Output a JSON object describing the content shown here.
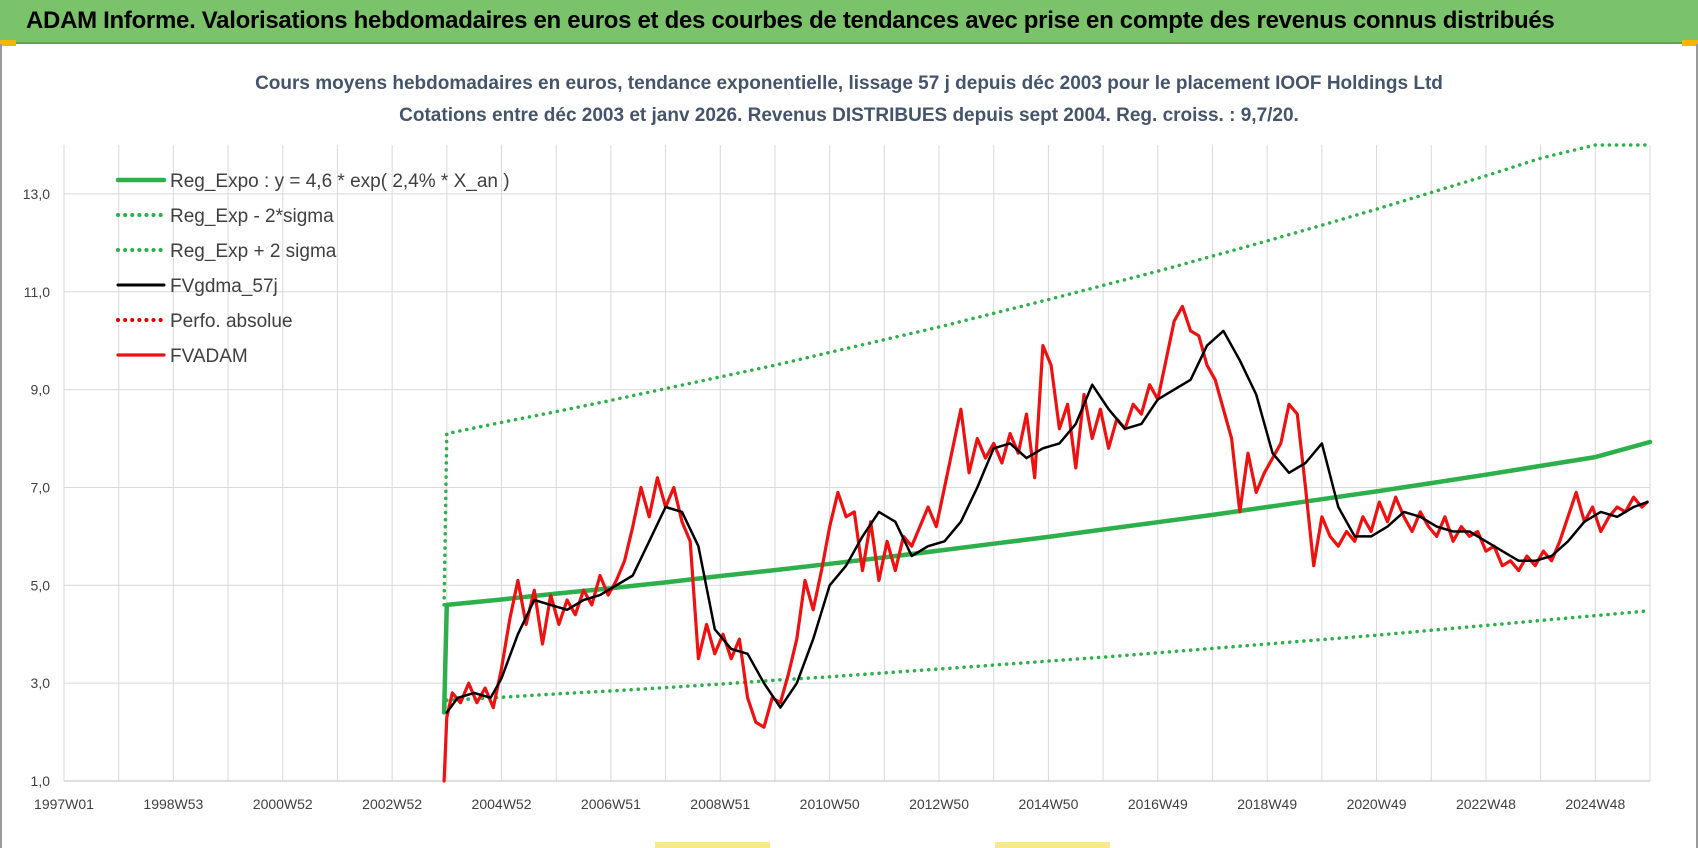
{
  "header": {
    "title": "ADAM Informe. Valorisations hebdomadaires en euros et des courbes de tendances avec prise en compte des revenus connus distribués"
  },
  "colors": {
    "header_bg": "#7ac36a",
    "trend": "#2db04b",
    "band": "#2db04b",
    "smooth": "#000000",
    "perf": "#e00000",
    "fvadam": "#ee1111",
    "grid": "#d9d9d9"
  },
  "chart_data": {
    "type": "line",
    "title": "Cours moyens hebdomadaires en euros, tendance exponentielle, lissage 57 j depuis déc 2003 pour le placement IOOF Holdings Ltd",
    "subtitle": "Cotations entre déc 2003 et janv 2026.  Revenus DISTRIBUES depuis sept 2004.  Reg. croiss. : 9,7/20.",
    "xlabel": "",
    "ylabel": "",
    "ylim": [
      1.0,
      14.0
    ],
    "xlim": [
      1997.0,
      2026.0
    ],
    "yticks": [
      "1,0",
      "3,0",
      "5,0",
      "7,0",
      "9,0",
      "11,0",
      "13,0"
    ],
    "ytick_values": [
      1,
      3,
      5,
      7,
      9,
      11,
      13
    ],
    "xticks": [
      "1997W01",
      "1998W53",
      "2000W52",
      "2002W52",
      "2004W52",
      "2006W51",
      "2008W51",
      "2010W50",
      "2012W50",
      "2014W50",
      "2016W49",
      "2018W49",
      "2020W49",
      "2022W48",
      "2024W48"
    ],
    "xtick_values": [
      1997,
      1999,
      2001,
      2003,
      2005,
      2007,
      2009,
      2011,
      2013,
      2015,
      2017,
      2019,
      2021,
      2023,
      2025
    ],
    "grid": true,
    "legend_position": "top-left",
    "series": [
      {
        "name": "Reg_Expo : y = 4,6 * exp( 2,4% *  X_an )",
        "style": "solid-thick",
        "color": "#2db04b",
        "x": [
          2003.95,
          2004.0,
          2005.0,
          2006.0,
          2007.0,
          2008.0,
          2009.0,
          2010.0,
          2011.0,
          2012.0,
          2013.0,
          2014.0,
          2015.0,
          2016.0,
          2017.0,
          2018.0,
          2019.0,
          2020.0,
          2021.0,
          2022.0,
          2023.0,
          2024.0,
          2025.0,
          2026.0
        ],
        "values": [
          2.4,
          4.6,
          4.71,
          4.83,
          4.94,
          5.06,
          5.19,
          5.31,
          5.44,
          5.57,
          5.71,
          5.85,
          5.99,
          6.14,
          6.29,
          6.44,
          6.6,
          6.76,
          6.92,
          7.09,
          7.26,
          7.44,
          7.62,
          7.93
        ]
      },
      {
        "name": "Reg_Exp - 2*sigma",
        "style": "dotted",
        "color": "#2db04b",
        "x": [
          2004.0,
          2005.0,
          2006.0,
          2007.0,
          2008.0,
          2009.0,
          2010.0,
          2011.0,
          2012.0,
          2013.0,
          2014.0,
          2015.0,
          2016.0,
          2017.0,
          2018.0,
          2019.0,
          2020.0,
          2021.0,
          2022.0,
          2023.0,
          2024.0,
          2025.0,
          2026.0
        ],
        "values": [
          2.65,
          2.71,
          2.78,
          2.84,
          2.91,
          2.98,
          3.06,
          3.13,
          3.21,
          3.29,
          3.37,
          3.45,
          3.53,
          3.62,
          3.71,
          3.8,
          3.89,
          3.98,
          4.08,
          4.18,
          4.28,
          4.38,
          4.48
        ]
      },
      {
        "name": "Reg_Exp + 2 sigma",
        "style": "dotted",
        "color": "#2db04b",
        "x": [
          2003.95,
          2004.0,
          2005.0,
          2006.0,
          2007.0,
          2008.0,
          2009.0,
          2010.0,
          2011.0,
          2012.0,
          2013.0,
          2014.0,
          2015.0,
          2016.0,
          2017.0,
          2018.0,
          2019.0,
          2020.0,
          2021.0,
          2022.0,
          2023.0,
          2024.0,
          2025.0,
          2026.0
        ],
        "values": [
          4.6,
          8.1,
          8.33,
          8.55,
          8.78,
          9.02,
          9.26,
          9.5,
          9.76,
          10.02,
          10.28,
          10.56,
          10.84,
          11.13,
          11.42,
          11.73,
          12.04,
          12.36,
          12.69,
          13.03,
          13.37,
          13.73,
          14.0,
          14.0
        ]
      },
      {
        "name": "FVgdma_57j",
        "style": "solid",
        "color": "#000000",
        "x": [
          2004.0,
          2004.2,
          2004.5,
          2004.8,
          2005.0,
          2005.3,
          2005.6,
          2005.9,
          2006.2,
          2006.5,
          2006.8,
          2007.1,
          2007.4,
          2007.7,
          2008.0,
          2008.3,
          2008.6,
          2008.9,
          2009.2,
          2009.5,
          2009.8,
          2010.1,
          2010.4,
          2010.7,
          2011.0,
          2011.3,
          2011.6,
          2011.9,
          2012.2,
          2012.5,
          2012.8,
          2013.1,
          2013.4,
          2013.7,
          2014.0,
          2014.3,
          2014.6,
          2014.9,
          2015.2,
          2015.5,
          2015.8,
          2016.1,
          2016.4,
          2016.7,
          2017.0,
          2017.3,
          2017.6,
          2017.9,
          2018.2,
          2018.5,
          2018.8,
          2019.1,
          2019.4,
          2019.7,
          2020.0,
          2020.3,
          2020.6,
          2020.9,
          2021.2,
          2021.5,
          2021.8,
          2022.1,
          2022.4,
          2022.7,
          2023.0,
          2023.3,
          2023.6,
          2023.9,
          2024.2,
          2024.5,
          2024.8,
          2025.1,
          2025.4,
          2025.7,
          2025.95
        ],
        "values": [
          2.4,
          2.7,
          2.8,
          2.7,
          3.1,
          4.0,
          4.7,
          4.6,
          4.5,
          4.7,
          4.8,
          5.0,
          5.2,
          5.9,
          6.6,
          6.5,
          5.8,
          4.1,
          3.7,
          3.6,
          3.0,
          2.5,
          3.0,
          3.9,
          5.0,
          5.4,
          6.0,
          6.5,
          6.3,
          5.6,
          5.8,
          5.9,
          6.3,
          7.0,
          7.8,
          7.9,
          7.6,
          7.8,
          7.9,
          8.3,
          9.1,
          8.6,
          8.2,
          8.3,
          8.8,
          9.0,
          9.2,
          9.9,
          10.2,
          9.6,
          8.9,
          7.7,
          7.3,
          7.5,
          7.9,
          6.6,
          6.0,
          6.0,
          6.2,
          6.5,
          6.4,
          6.2,
          6.1,
          6.1,
          5.9,
          5.7,
          5.5,
          5.5,
          5.6,
          5.9,
          6.3,
          6.5,
          6.4,
          6.6,
          6.7
        ]
      },
      {
        "name": "Perfo. absolue",
        "style": "dotted",
        "color": "#e00000",
        "x": [],
        "values": []
      },
      {
        "name": "FVADAM",
        "style": "solid-thick",
        "color": "#ee1111",
        "x": [
          2003.95,
          2004.0,
          2004.1,
          2004.25,
          2004.4,
          2004.55,
          2004.7,
          2004.85,
          2005.0,
          2005.15,
          2005.3,
          2005.45,
          2005.6,
          2005.75,
          2005.9,
          2006.05,
          2006.2,
          2006.35,
          2006.5,
          2006.65,
          2006.8,
          2006.95,
          2007.1,
          2007.25,
          2007.4,
          2007.55,
          2007.7,
          2007.85,
          2008.0,
          2008.15,
          2008.3,
          2008.45,
          2008.6,
          2008.75,
          2008.9,
          2009.05,
          2009.2,
          2009.35,
          2009.5,
          2009.65,
          2009.8,
          2009.95,
          2010.1,
          2010.25,
          2010.4,
          2010.55,
          2010.7,
          2010.85,
          2011.0,
          2011.15,
          2011.3,
          2011.45,
          2011.6,
          2011.75,
          2011.9,
          2012.05,
          2012.2,
          2012.35,
          2012.5,
          2012.65,
          2012.8,
          2012.95,
          2013.1,
          2013.25,
          2013.4,
          2013.55,
          2013.7,
          2013.85,
          2014.0,
          2014.15,
          2014.3,
          2014.45,
          2014.6,
          2014.75,
          2014.9,
          2015.05,
          2015.2,
          2015.35,
          2015.5,
          2015.65,
          2015.8,
          2015.95,
          2016.1,
          2016.25,
          2016.4,
          2016.55,
          2016.7,
          2016.85,
          2017.0,
          2017.15,
          2017.3,
          2017.45,
          2017.6,
          2017.75,
          2017.9,
          2018.05,
          2018.2,
          2018.35,
          2018.5,
          2018.65,
          2018.8,
          2018.95,
          2019.1,
          2019.25,
          2019.4,
          2019.55,
          2019.7,
          2019.85,
          2020.0,
          2020.15,
          2020.3,
          2020.45,
          2020.6,
          2020.75,
          2020.9,
          2021.05,
          2021.2,
          2021.35,
          2021.5,
          2021.65,
          2021.8,
          2021.95,
          2022.1,
          2022.25,
          2022.4,
          2022.55,
          2022.7,
          2022.85,
          2023.0,
          2023.15,
          2023.3,
          2023.45,
          2023.6,
          2023.75,
          2023.9,
          2024.05,
          2024.2,
          2024.35,
          2024.5,
          2024.65,
          2024.8,
          2024.95,
          2025.1,
          2025.25,
          2025.4,
          2025.55,
          2025.7,
          2025.85,
          2025.95
        ],
        "values": [
          1.0,
          2.3,
          2.8,
          2.6,
          3.0,
          2.6,
          2.9,
          2.5,
          3.3,
          4.3,
          5.1,
          4.2,
          4.9,
          3.8,
          4.8,
          4.2,
          4.7,
          4.4,
          4.9,
          4.6,
          5.2,
          4.8,
          5.1,
          5.5,
          6.2,
          7.0,
          6.4,
          7.2,
          6.6,
          7.0,
          6.3,
          5.9,
          3.5,
          4.2,
          3.6,
          4.0,
          3.5,
          3.9,
          2.7,
          2.2,
          2.1,
          2.7,
          2.6,
          3.2,
          3.9,
          5.1,
          4.5,
          5.3,
          6.2,
          6.9,
          6.4,
          6.5,
          5.3,
          6.3,
          5.1,
          5.9,
          5.3,
          6.0,
          5.8,
          6.2,
          6.6,
          6.2,
          7.0,
          7.8,
          8.6,
          7.3,
          8.0,
          7.6,
          7.9,
          7.5,
          8.1,
          7.7,
          8.5,
          7.2,
          9.9,
          9.5,
          8.2,
          8.7,
          7.4,
          8.9,
          8.0,
          8.6,
          7.8,
          8.4,
          8.2,
          8.7,
          8.5,
          9.1,
          8.8,
          9.6,
          10.4,
          10.7,
          10.2,
          10.1,
          9.5,
          9.2,
          8.6,
          8.0,
          6.5,
          7.7,
          6.9,
          7.3,
          7.6,
          7.9,
          8.7,
          8.5,
          7.0,
          5.4,
          6.4,
          6.0,
          5.8,
          6.1,
          5.9,
          6.4,
          6.1,
          6.7,
          6.3,
          6.8,
          6.4,
          6.1,
          6.5,
          6.2,
          6.0,
          6.4,
          5.9,
          6.2,
          6.0,
          6.1,
          5.7,
          5.8,
          5.4,
          5.5,
          5.3,
          5.6,
          5.4,
          5.7,
          5.5,
          5.9,
          6.4,
          6.9,
          6.3,
          6.6,
          6.1,
          6.4,
          6.6,
          6.5,
          6.8,
          6.6,
          6.7
        ]
      }
    ]
  }
}
